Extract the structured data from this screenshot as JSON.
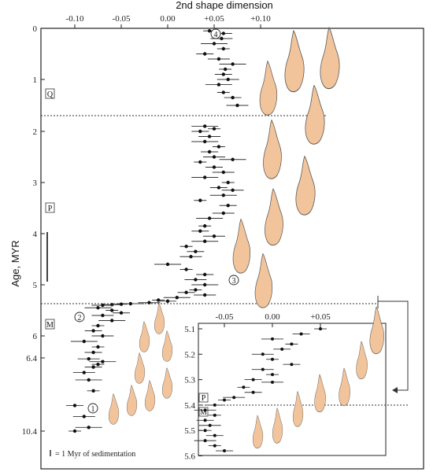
{
  "chart_data": {
    "type": "scatter",
    "title": "",
    "xlabel": "2nd shape dimension",
    "ylabel": "Age, MYR",
    "x_ticks": [
      "-0.10",
      "-0.05",
      "0.00",
      "+0.05",
      "+0.10"
    ],
    "x_tick_values": [
      -0.1,
      -0.05,
      0.0,
      0.05,
      0.1
    ],
    "xlim": [
      -0.13,
      0.14
    ],
    "y_ticks": [
      "0",
      "1",
      "2",
      "3",
      "4",
      "5",
      "6",
      "6.4",
      "10.4"
    ],
    "y_tick_values": [
      0,
      1,
      2,
      3,
      4,
      5,
      6,
      6.4,
      10.4
    ],
    "epochs": [
      {
        "label": "Q",
        "boundary_age": 1.7
      },
      {
        "label": "P",
        "boundary_age": 5.35
      },
      {
        "label": "M"
      }
    ],
    "scale_bar_note": "= 1 Myr of sedimentation",
    "markers": [
      "1",
      "2",
      "3",
      "4"
    ],
    "points": [
      [
        0.045,
        0.05
      ],
      [
        0.06,
        0.1
      ],
      [
        0.058,
        0.2
      ],
      [
        0.05,
        0.3
      ],
      [
        0.06,
        0.4
      ],
      [
        0.04,
        0.5
      ],
      [
        0.055,
        0.6
      ],
      [
        0.07,
        0.7
      ],
      [
        0.062,
        0.8
      ],
      [
        0.06,
        0.9
      ],
      [
        0.065,
        1.0
      ],
      [
        0.055,
        1.1
      ],
      [
        0.06,
        1.25
      ],
      [
        0.07,
        1.35
      ],
      [
        0.075,
        1.5
      ],
      [
        0.04,
        1.9
      ],
      [
        0.05,
        1.95
      ],
      [
        0.035,
        2.0
      ],
      [
        0.045,
        2.1
      ],
      [
        0.04,
        2.2
      ],
      [
        0.055,
        2.3
      ],
      [
        0.045,
        2.4
      ],
      [
        0.05,
        2.5
      ],
      [
        0.07,
        2.55
      ],
      [
        0.035,
        2.6
      ],
      [
        0.05,
        2.7
      ],
      [
        0.06,
        2.8
      ],
      [
        0.04,
        2.9
      ],
      [
        0.065,
        3.0
      ],
      [
        0.055,
        3.1
      ],
      [
        0.07,
        3.15
      ],
      [
        0.06,
        3.25
      ],
      [
        0.035,
        3.35
      ],
      [
        0.065,
        3.45
      ],
      [
        0.06,
        3.6
      ],
      [
        0.045,
        3.7
      ],
      [
        0.04,
        3.85
      ],
      [
        0.035,
        3.95
      ],
      [
        0.05,
        4.05
      ],
      [
        0.04,
        4.15
      ],
      [
        0.02,
        4.25
      ],
      [
        0.03,
        4.35
      ],
      [
        0.025,
        4.45
      ],
      [
        0.0,
        4.6
      ],
      [
        0.02,
        4.7
      ],
      [
        0.04,
        4.8
      ],
      [
        0.03,
        4.9
      ],
      [
        0.04,
        5.0
      ],
      [
        0.03,
        5.1
      ],
      [
        0.02,
        5.15
      ],
      [
        0.04,
        5.2
      ],
      [
        0.01,
        5.25
      ],
      [
        -0.01,
        5.3
      ],
      [
        0.0,
        5.32
      ],
      [
        -0.02,
        5.35
      ],
      [
        -0.04,
        5.37
      ],
      [
        -0.05,
        5.38
      ],
      [
        -0.06,
        5.39
      ],
      [
        -0.07,
        5.4
      ],
      [
        -0.075,
        5.45
      ],
      [
        -0.06,
        5.5
      ],
      [
        -0.05,
        5.55
      ],
      [
        -0.07,
        5.6
      ],
      [
        -0.06,
        5.7
      ],
      [
        -0.075,
        5.8
      ],
      [
        -0.08,
        5.9
      ],
      [
        -0.07,
        6.0
      ],
      [
        -0.09,
        6.1
      ],
      [
        -0.075,
        6.2
      ],
      [
        -0.08,
        6.3
      ],
      [
        -0.085,
        6.45
      ],
      [
        -0.07,
        6.6
      ],
      [
        -0.075,
        6.75
      ],
      [
        -0.08,
        6.9
      ],
      [
        -0.09,
        7.2
      ],
      [
        -0.085,
        7.6
      ],
      [
        -0.08,
        8.2
      ],
      [
        -0.1,
        9.0
      ],
      [
        -0.09,
        9.6
      ],
      [
        -0.085,
        10.2
      ],
      [
        -0.1,
        10.4
      ]
    ],
    "inset": {
      "x_ticks": [
        "-0.05",
        "0.00",
        "+0.05"
      ],
      "x_tick_values": [
        -0.05,
        0.0,
        0.05
      ],
      "xlim": [
        -0.09,
        0.09
      ],
      "y_ticks": [
        "5.1",
        "5.2",
        "5.3",
        "5.4",
        "5.5",
        "5.6"
      ],
      "y_tick_values": [
        5.1,
        5.2,
        5.3,
        5.4,
        5.5,
        5.6
      ],
      "ylim": [
        5.07,
        5.62
      ],
      "epochs": [
        {
          "label": "P",
          "boundary_age": 5.39
        },
        {
          "label": "M"
        }
      ],
      "points": [
        [
          0.05,
          5.1
        ],
        [
          0.03,
          5.12
        ],
        [
          0.0,
          5.14
        ],
        [
          0.02,
          5.16
        ],
        [
          0.01,
          5.18
        ],
        [
          -0.01,
          5.2
        ],
        [
          0.0,
          5.22
        ],
        [
          0.02,
          5.24
        ],
        [
          -0.01,
          5.26
        ],
        [
          0.0,
          5.28
        ],
        [
          -0.02,
          5.3
        ],
        [
          0.0,
          5.31
        ],
        [
          -0.03,
          5.33
        ],
        [
          -0.02,
          5.35
        ],
        [
          -0.04,
          5.37
        ],
        [
          -0.05,
          5.38
        ],
        [
          -0.06,
          5.4
        ],
        [
          -0.07,
          5.42
        ],
        [
          -0.06,
          5.44
        ],
        [
          -0.07,
          5.46
        ],
        [
          -0.065,
          5.48
        ],
        [
          -0.07,
          5.5
        ],
        [
          -0.06,
          5.52
        ],
        [
          -0.07,
          5.54
        ],
        [
          -0.06,
          5.56
        ],
        [
          -0.05,
          5.58
        ]
      ]
    }
  }
}
